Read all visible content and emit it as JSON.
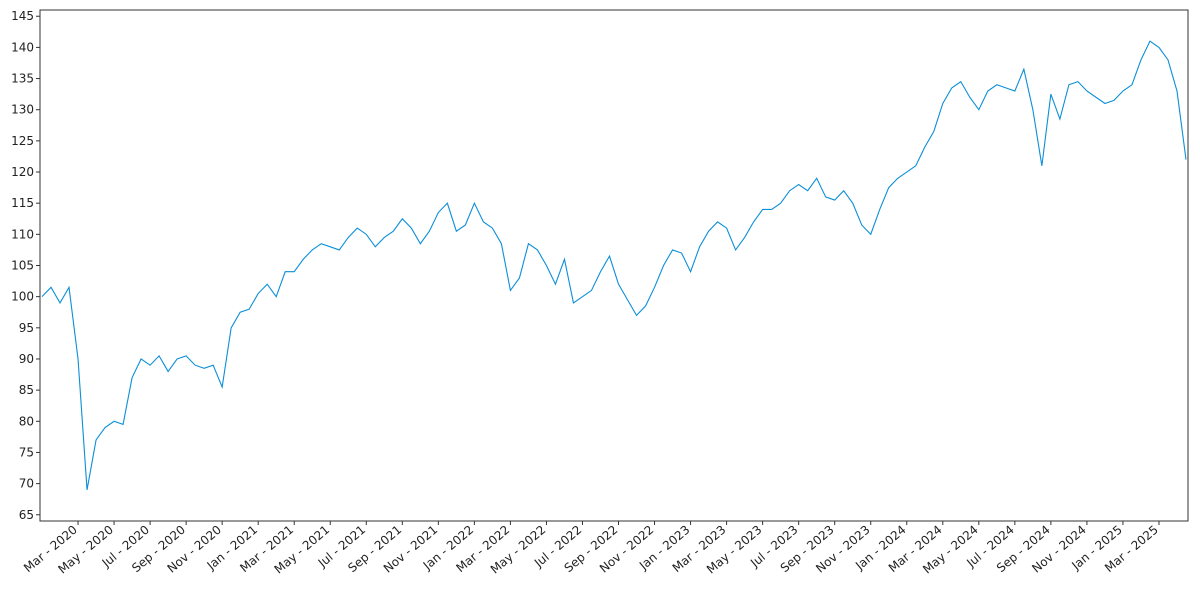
{
  "chart_data": {
    "type": "line",
    "categories": [
      null,
      null,
      null,
      null,
      "Mar - 2020",
      null,
      null,
      null,
      "May - 2020",
      null,
      null,
      null,
      "Jul - 2020",
      null,
      null,
      null,
      "Sep - 2020",
      null,
      null,
      null,
      "Nov - 2020",
      null,
      null,
      null,
      "Jan - 2021",
      null,
      null,
      null,
      "Mar - 2021",
      null,
      null,
      null,
      "May - 2021",
      null,
      null,
      null,
      "Jul - 2021",
      null,
      null,
      null,
      "Sep - 2021",
      null,
      null,
      null,
      "Nov - 2021",
      null,
      null,
      null,
      "Jan - 2022",
      null,
      null,
      null,
      "Mar - 2022",
      null,
      null,
      null,
      "May - 2022",
      null,
      null,
      null,
      "Jul - 2022",
      null,
      null,
      null,
      "Sep - 2022",
      null,
      null,
      null,
      "Nov - 2022",
      null,
      null,
      null,
      "Jan - 2023",
      null,
      null,
      null,
      "Mar - 2023",
      null,
      null,
      null,
      "May - 2023",
      null,
      null,
      null,
      "Jul - 2023",
      null,
      null,
      null,
      "Sep - 2023",
      null,
      null,
      null,
      "Nov - 2023",
      null,
      null,
      null,
      "Jan - 2024",
      null,
      null,
      null,
      "Mar - 2024",
      null,
      null,
      null,
      "May - 2024",
      null,
      null,
      null,
      "Jul - 2024",
      null,
      null,
      null,
      "Sep - 2024",
      null,
      null,
      null,
      "Nov - 2024",
      null,
      null,
      null,
      "Jan - 2025",
      null,
      null,
      null,
      "Mar - 2025",
      null,
      null,
      null
    ],
    "values": [
      100,
      101.5,
      99,
      101.5,
      90,
      69,
      77,
      79,
      80,
      79.5,
      87,
      90,
      89,
      90.5,
      88,
      90,
      90.5,
      89,
      88.5,
      89,
      85.5,
      95,
      97.5,
      98,
      100.5,
      102,
      100,
      104,
      104,
      106,
      107.5,
      108.5,
      108,
      107.5,
      109.5,
      111,
      110,
      108,
      109.5,
      110.5,
      112.5,
      111,
      108.5,
      110.5,
      113.5,
      115,
      110.5,
      111.5,
      115,
      112,
      111,
      108.5,
      101,
      103,
      108.5,
      107.5,
      105,
      102,
      106,
      99,
      100,
      101,
      104,
      106.5,
      102,
      99.5,
      97,
      98.5,
      101.5,
      105,
      107.5,
      107,
      104,
      108,
      110.5,
      112,
      111,
      107.5,
      109.5,
      112,
      114,
      114,
      115,
      117,
      118,
      117,
      119,
      116,
      115.5,
      117,
      115,
      111.5,
      110,
      114,
      117.5,
      119,
      120,
      121,
      124,
      126.5,
      131,
      133.5,
      134.5,
      132,
      130,
      133,
      134,
      133.5,
      133,
      136.5,
      130,
      121,
      132.5,
      128.5,
      134,
      134.5,
      133,
      132,
      131,
      131.5,
      133,
      134,
      138,
      141,
      140,
      138,
      133,
      122
    ],
    "color": "#0b8fd8",
    "ylim": [
      64,
      146
    ],
    "yticks": [
      65,
      70,
      75,
      80,
      85,
      90,
      95,
      100,
      105,
      110,
      115,
      120,
      125,
      130,
      135,
      140,
      145
    ],
    "grid": false
  }
}
